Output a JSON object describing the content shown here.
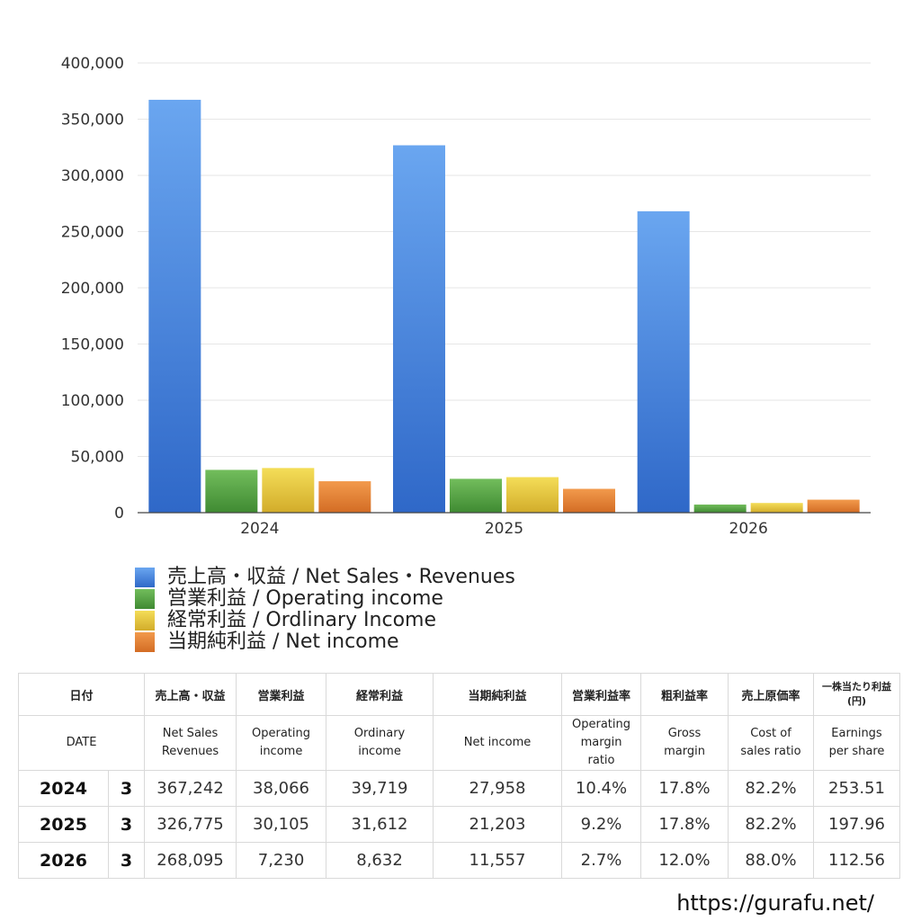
{
  "chart_data": {
    "type": "bar",
    "categories": [
      "2024",
      "2025",
      "2026"
    ],
    "ylim": [
      0,
      400000
    ],
    "yticks": [
      0,
      50000,
      100000,
      150000,
      200000,
      250000,
      300000,
      350000,
      400000
    ],
    "ytick_labels": [
      "0",
      "50,000",
      "100,000",
      "150,000",
      "200,000",
      "250,000",
      "300,000",
      "350,000",
      "400,000"
    ],
    "grid": true,
    "legend_position": "bottom-left",
    "series": [
      {
        "name": "売上高・収益 / Net Sales・Revenues",
        "color": "#3a78d8",
        "values": [
          367242,
          326775,
          268095
        ]
      },
      {
        "name": "営業利益 / Operating income",
        "color": "#4e9c3e",
        "values": [
          38066,
          30105,
          7230
        ]
      },
      {
        "name": "経常利益 / Ordlinary Income",
        "color": "#e3c13a",
        "values": [
          39719,
          31612,
          8632
        ]
      },
      {
        "name": "当期純利益 / Net income",
        "color": "#e07b30",
        "values": [
          27958,
          21203,
          11557
        ]
      }
    ]
  },
  "table": {
    "header_jp": {
      "date": "日付",
      "sales": "売上高・収益",
      "operating": "営業利益",
      "ordinary": "経常利益",
      "net": "当期純利益",
      "op_margin": "営業利益率",
      "gross": "粗利益率",
      "cost_ratio": "売上原価率",
      "eps_line1": "一株当たり利益",
      "eps_line2": "(円)"
    },
    "header_en": {
      "date": "DATE",
      "sales_1": "Net Sales",
      "sales_2": "Revenues",
      "operating_1": "Operating",
      "operating_2": "income",
      "ordinary_1": "Ordinary",
      "ordinary_2": "income",
      "net": "Net income",
      "op_margin_1": "Operating",
      "op_margin_2": "margin",
      "op_margin_3": "ratio",
      "gross_1": "Gross",
      "gross_2": "margin",
      "cost_ratio_1": "Cost of",
      "cost_ratio_2": "sales ratio",
      "eps_1": "Earnings",
      "eps_2": "per share"
    },
    "rows": [
      {
        "year": "2024",
        "month": "3",
        "sales": "367,242",
        "operating": "38,066",
        "ordinary": "39,719",
        "net": "27,958",
        "op_margin": "10.4%",
        "gross": "17.8%",
        "cost_ratio": "82.2%",
        "eps": "253.51"
      },
      {
        "year": "2025",
        "month": "3",
        "sales": "326,775",
        "operating": "30,105",
        "ordinary": "31,612",
        "net": "21,203",
        "op_margin": "9.2%",
        "gross": "17.8%",
        "cost_ratio": "82.2%",
        "eps": "197.96"
      },
      {
        "year": "2026",
        "month": "3",
        "sales": "268,095",
        "operating": "7,230",
        "ordinary": "8,632",
        "net": "11,557",
        "op_margin": "2.7%",
        "gross": "12.0%",
        "cost_ratio": "88.0%",
        "eps": "112.56"
      }
    ]
  },
  "url": "https://gurafu.net/"
}
